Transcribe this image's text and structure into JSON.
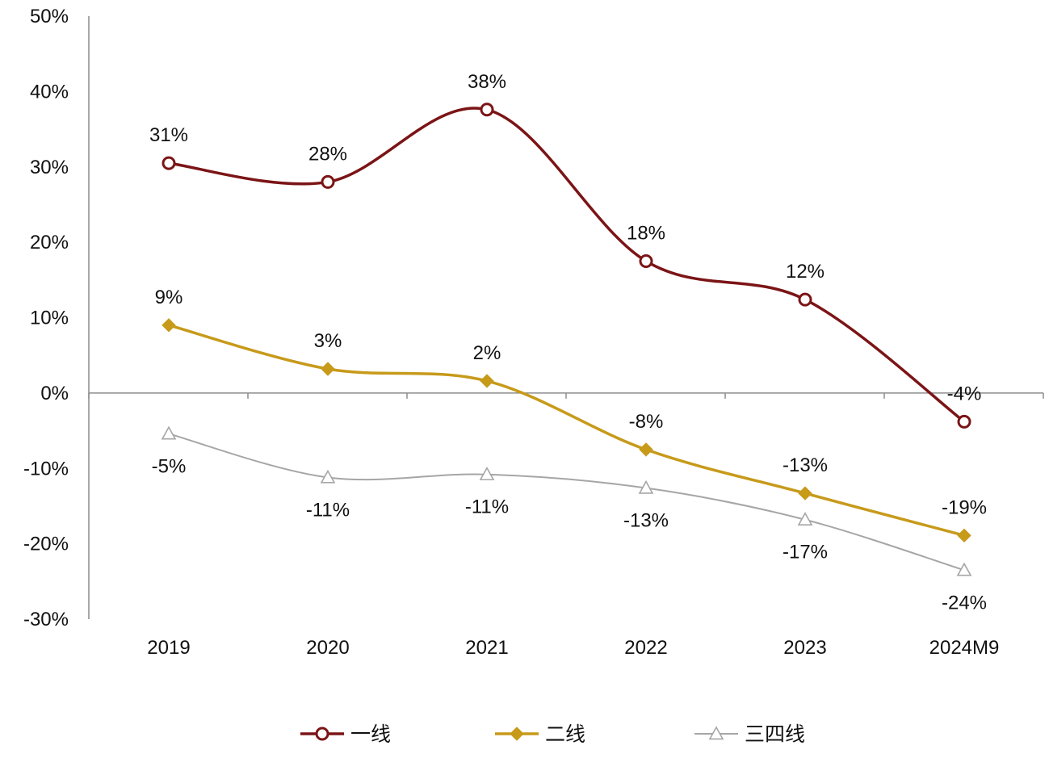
{
  "chart_data": {
    "type": "line",
    "categories": [
      "2019",
      "2020",
      "2021",
      "2022",
      "2023",
      "2024M9"
    ],
    "ylim": [
      -30,
      50
    ],
    "yticks": [
      -30,
      -20,
      -10,
      0,
      10,
      20,
      30,
      40,
      50
    ],
    "ytick_labels": [
      "-30%",
      "-20%",
      "-10%",
      "0%",
      "10%",
      "20%",
      "30%",
      "40%",
      "50%"
    ],
    "y_unit": "%",
    "grid": false,
    "smooth": true,
    "legend_position": "bottom",
    "series": [
      {
        "name": "一线",
        "values": [
          30.5,
          28,
          37.6,
          17.5,
          12.4,
          -3.8
        ],
        "labels": [
          "31%",
          "28%",
          "38%",
          "18%",
          "12%",
          "-4%"
        ],
        "label_position": "above",
        "color": "#7b1416",
        "marker": "circle-open"
      },
      {
        "name": "二线",
        "values": [
          9,
          3.2,
          1.6,
          -7.5,
          -13.3,
          -18.9
        ],
        "labels": [
          "9%",
          "3%",
          "2%",
          "-8%",
          "-13%",
          "-19%"
        ],
        "label_position": "above",
        "color": "#c79a1a",
        "marker": "diamond-filled"
      },
      {
        "name": "三四线",
        "values": [
          -5.4,
          -11.2,
          -10.8,
          -12.6,
          -16.8,
          -23.5
        ],
        "labels": [
          "-5%",
          "-11%",
          "-11%",
          "-13%",
          "-17%",
          "-24%"
        ],
        "label_position": "below",
        "color": "#a6a6a6",
        "marker": "triangle-open"
      }
    ]
  }
}
